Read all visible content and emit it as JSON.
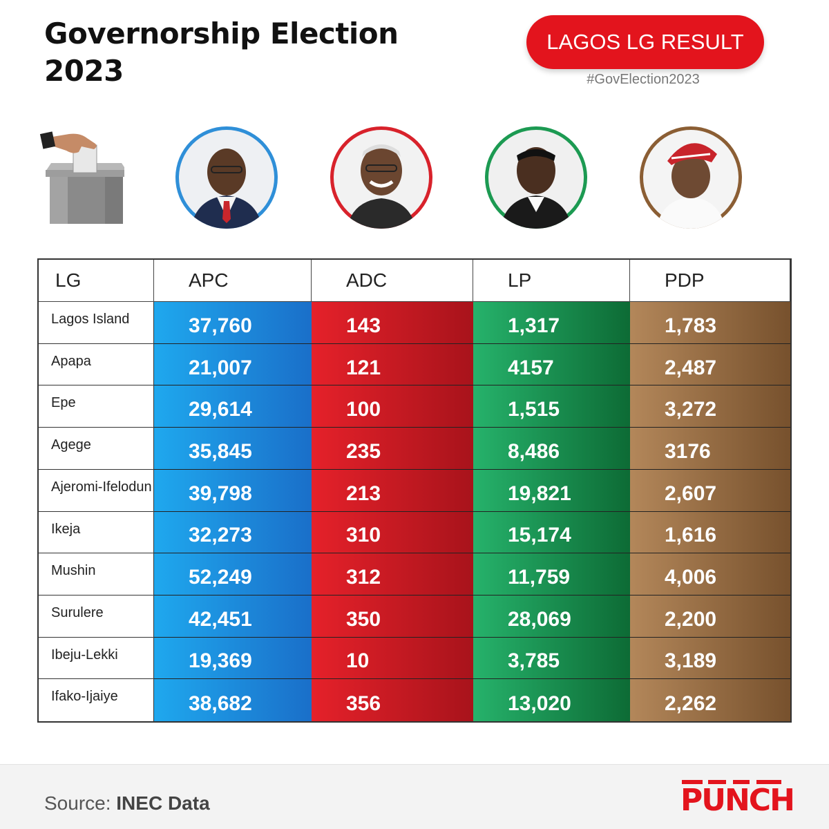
{
  "header": {
    "title_line1": "Governorship Election",
    "title_line2": "2023",
    "badge": "LAGOS LG RESULT",
    "hashtag": "#GovElection2023"
  },
  "icons": {
    "ballot": "ballot-box-icon"
  },
  "candidates": [
    {
      "party": "APC",
      "ring_color": "#2f8fd8"
    },
    {
      "party": "ADC",
      "ring_color": "#d8222b"
    },
    {
      "party": "LP",
      "ring_color": "#1c9a52"
    },
    {
      "party": "PDP",
      "ring_color": "#8b5e34"
    }
  ],
  "table": {
    "headers": [
      "LG",
      "APC",
      "ADC",
      "LP",
      "PDP"
    ],
    "rows": [
      {
        "lg": "Lagos Island",
        "apc": "37,760",
        "adc": "143",
        "lp": "1,317",
        "pdp": "1,783"
      },
      {
        "lg": "Apapa",
        "apc": "21,007",
        "adc": "121",
        "lp": "4157",
        "pdp": "2,487"
      },
      {
        "lg": "Epe",
        "apc": "29,614",
        "adc": "100",
        "lp": "1,515",
        "pdp": "3,272"
      },
      {
        "lg": "Agege",
        "apc": "35,845",
        "adc": "235",
        "lp": "8,486",
        "pdp": "3176"
      },
      {
        "lg": "Ajeromi-Ifelodun",
        "apc": "39,798",
        "adc": "213",
        "lp": "19,821",
        "pdp": "2,607"
      },
      {
        "lg": "Ikeja",
        "apc": "32,273",
        "adc": "310",
        "lp": "15,174",
        "pdp": "1,616"
      },
      {
        "lg": "Mushin",
        "apc": "52,249",
        "adc": "312",
        "lp": "11,759",
        "pdp": "4,006"
      },
      {
        "lg": "Surulere",
        "apc": "42,451",
        "adc": "350",
        "lp": "28,069",
        "pdp": "2,200"
      },
      {
        "lg": "Ibeju-Lekki",
        "apc": "19,369",
        "adc": "10",
        "lp": "3,785",
        "pdp": "3,189"
      },
      {
        "lg": "Ifako-Ijaiye",
        "apc": "38,682",
        "adc": "356",
        "lp": "13,020",
        "pdp": "2,262"
      }
    ]
  },
  "chart_data": {
    "type": "table",
    "title": "Governorship Election 2023",
    "subtitle": "LAGOS LG RESULT",
    "columns": [
      "LG",
      "APC",
      "ADC",
      "LP",
      "PDP"
    ],
    "categories": [
      "Lagos Island",
      "Apapa",
      "Epe",
      "Agege",
      "Ajeromi-Ifelodun",
      "Ikeja",
      "Mushin",
      "Surulere",
      "Ibeju-Lekki",
      "Ifako-Ijaiye"
    ],
    "series": [
      {
        "name": "APC",
        "values": [
          37760,
          21007,
          29614,
          35845,
          39798,
          32273,
          52249,
          42451,
          19369,
          38682
        ]
      },
      {
        "name": "ADC",
        "values": [
          143,
          121,
          100,
          235,
          213,
          310,
          312,
          350,
          10,
          356
        ]
      },
      {
        "name": "LP",
        "values": [
          1317,
          4157,
          1515,
          8486,
          19821,
          15174,
          11759,
          28069,
          3785,
          13020
        ]
      },
      {
        "name": "PDP",
        "values": [
          1783,
          2487,
          3272,
          3176,
          2607,
          1616,
          4006,
          2200,
          3189,
          2262
        ]
      }
    ]
  },
  "footer": {
    "source_label": "Source:",
    "source_value": "INEC Data",
    "brand": "PUNCH"
  }
}
